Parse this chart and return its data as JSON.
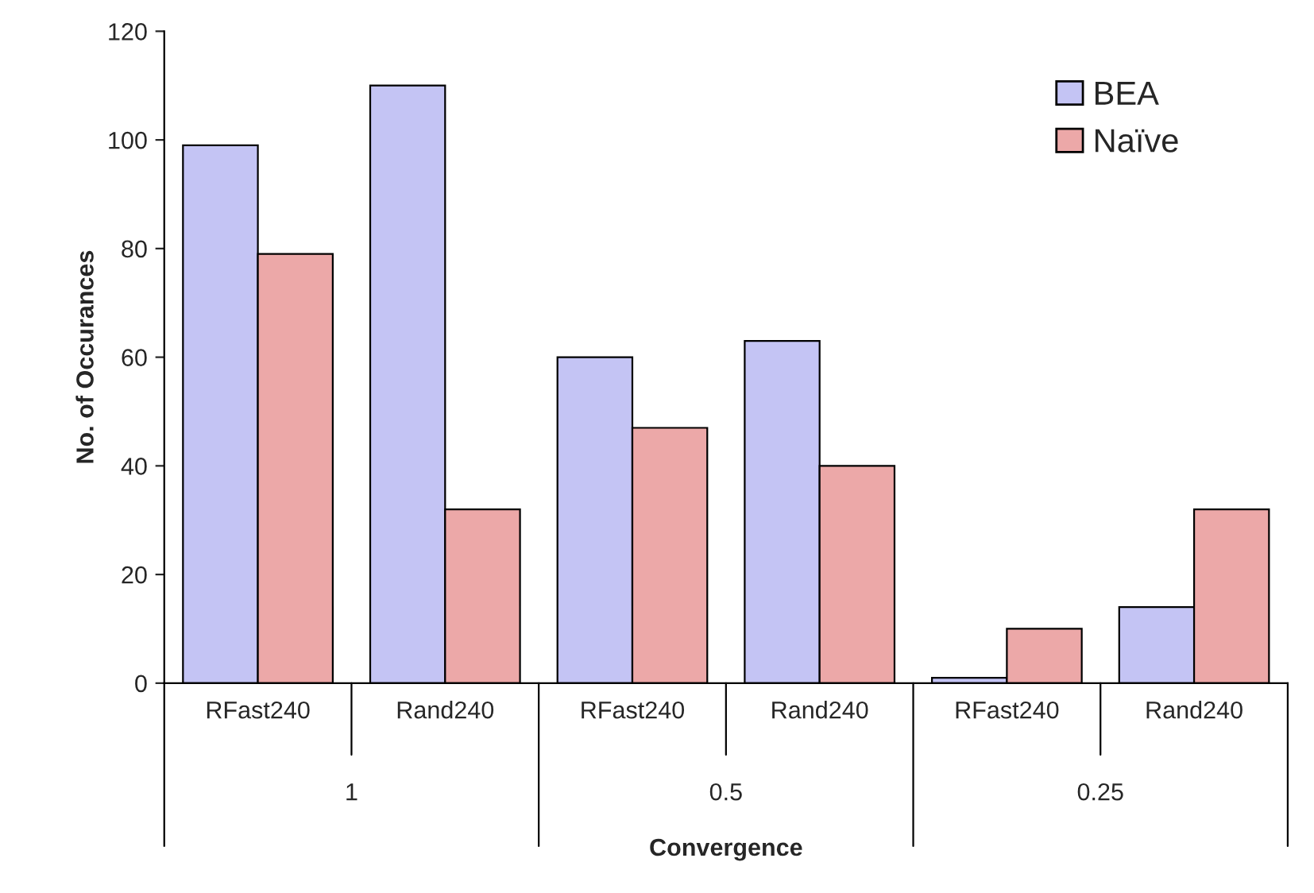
{
  "chart_data": {
    "type": "bar",
    "xlabel": "Convergence",
    "ylabel": "No. of Occurances",
    "categories": [
      "RFast240",
      "Rand240",
      "RFast240",
      "Rand240",
      "RFast240",
      "Rand240"
    ],
    "series": [
      {
        "name": "BEA",
        "color": "#c4c4f4",
        "values": [
          99,
          110,
          60,
          63,
          1,
          14
        ]
      },
      {
        "name": "Naïve",
        "color": "#eca8a8",
        "values": [
          79,
          32,
          47,
          40,
          10,
          32
        ]
      }
    ],
    "annotations": [
      "1",
      "0.5",
      "0.25"
    ],
    "ylim": [
      0,
      120
    ],
    "yticks": [
      0,
      20,
      40,
      60,
      80,
      100,
      120
    ],
    "grid": false,
    "legend": "top right"
  }
}
